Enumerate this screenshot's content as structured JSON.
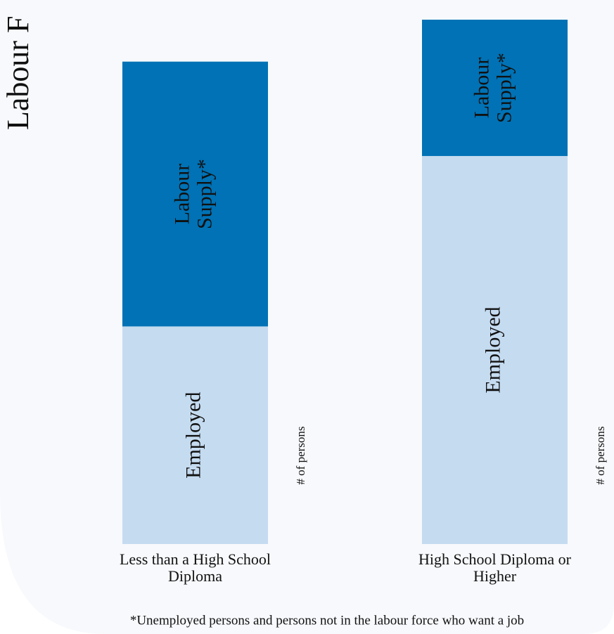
{
  "chart_data": {
    "type": "stacked_bar",
    "title": "Labour F",
    "categories": [
      "Less than a High School Diploma",
      "High School Diploma or Higher"
    ],
    "series": [
      {
        "name": "Employed",
        "color": "#c5dbf0",
        "values": [
          41.5,
          74
        ]
      },
      {
        "name": "Labour Supply*",
        "color": "#0072b5",
        "values": [
          50.5,
          26
        ]
      }
    ],
    "ylim": [
      0,
      100
    ],
    "unit_label": "# of persons",
    "footnote": "*Unemployed persons and persons not in the labour force who want a job"
  }
}
